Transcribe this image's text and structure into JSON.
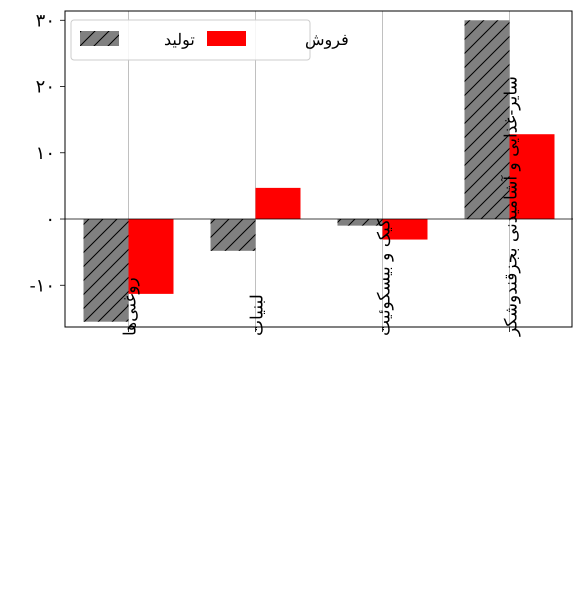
{
  "chart_data": {
    "type": "bar",
    "categories": [
      "روغنی‌ها",
      "لبنیات",
      "کیک و بیسکوئیت",
      "سایر-غذایی و آشامیدنی بجزقندوشکر"
    ],
    "series": [
      {
        "name": "تولید",
        "values": [
          -15.5,
          -4.8,
          -1.0,
          30.0
        ],
        "color": "#808080",
        "hatch": "diagonal"
      },
      {
        "name": "فروش",
        "values": [
          -11.3,
          4.7,
          -3.1,
          12.8
        ],
        "color": "#ff0000"
      }
    ],
    "yticks": [
      -10,
      0,
      10,
      20,
      30
    ],
    "ytick_labels": [
      "-۱۰",
      "۰",
      "۱۰",
      "۲۰",
      "۳۰"
    ],
    "ylim": [
      -16.3,
      31.4
    ],
    "grid": "x",
    "legend_position": "top-left",
    "title": "",
    "xlabel": "",
    "ylabel": ""
  }
}
